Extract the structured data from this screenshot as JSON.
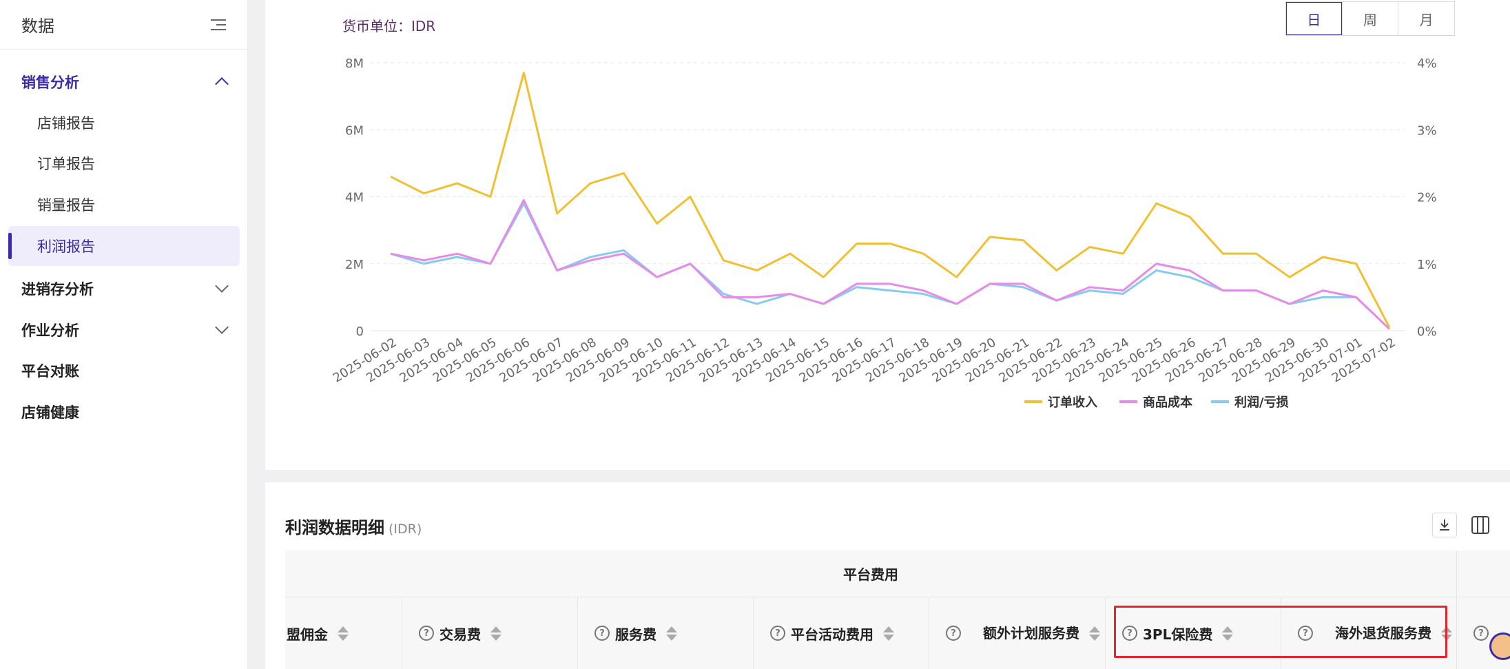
{
  "sidebar": {
    "title": "数据",
    "groups": [
      {
        "label": "销售分析",
        "expanded": true
      },
      {
        "label": "进销存分析"
      },
      {
        "label": "作业分析"
      },
      {
        "label": "平台对账"
      },
      {
        "label": "店铺健康"
      }
    ],
    "sub_items": [
      "店铺报告",
      "订单报告",
      "销量报告",
      "利润报告"
    ],
    "selected_sub": "利润报告"
  },
  "chart_header": {
    "currency_label": "货币单位：IDR",
    "period_tabs": [
      "日",
      "周",
      "月"
    ],
    "active_period": "日"
  },
  "chart_data": {
    "type": "line",
    "x": [
      "2025-06-02",
      "2025-06-03",
      "2025-06-04",
      "2025-06-05",
      "2025-06-06",
      "2025-06-07",
      "2025-06-08",
      "2025-06-09",
      "2025-06-10",
      "2025-06-11",
      "2025-06-12",
      "2025-06-13",
      "2025-06-14",
      "2025-06-15",
      "2025-06-16",
      "2025-06-17",
      "2025-06-18",
      "2025-06-19",
      "2025-06-20",
      "2025-06-21",
      "2025-06-22",
      "2025-06-23",
      "2025-06-24",
      "2025-06-25",
      "2025-06-26",
      "2025-06-27",
      "2025-06-28",
      "2025-06-29",
      "2025-06-30",
      "2025-07-01",
      "2025-07-02"
    ],
    "series": [
      {
        "name": "订单收入",
        "color": "#f0c030",
        "values": [
          4.6,
          4.1,
          4.4,
          4.0,
          7.7,
          3.5,
          4.4,
          4.7,
          3.2,
          4.0,
          2.1,
          1.8,
          2.3,
          1.6,
          2.6,
          2.6,
          2.3,
          1.6,
          2.8,
          2.7,
          1.8,
          2.5,
          2.3,
          3.8,
          3.4,
          2.3,
          2.3,
          1.6,
          2.2,
          2.0,
          0.1
        ]
      },
      {
        "name": "商品成本",
        "color": "#e88ae8",
        "values": [
          2.3,
          2.1,
          2.3,
          2.0,
          3.9,
          1.8,
          2.1,
          2.3,
          1.6,
          2.0,
          1.0,
          1.0,
          1.1,
          0.8,
          1.4,
          1.4,
          1.2,
          0.8,
          1.4,
          1.4,
          0.9,
          1.3,
          1.2,
          2.0,
          1.8,
          1.2,
          1.2,
          0.8,
          1.2,
          1.0,
          0.05
        ]
      },
      {
        "name": "利润/亏损",
        "color": "#86cbef",
        "values": [
          2.3,
          2.0,
          2.2,
          2.0,
          3.8,
          1.8,
          2.2,
          2.4,
          1.6,
          2.0,
          1.1,
          0.8,
          1.1,
          0.8,
          1.3,
          1.2,
          1.1,
          0.8,
          1.4,
          1.3,
          0.9,
          1.2,
          1.1,
          1.8,
          1.6,
          1.2,
          1.2,
          0.8,
          1.0,
          1.0,
          0.05
        ]
      }
    ],
    "y_left_ticks": [
      "0",
      "2M",
      "4M",
      "6M",
      "8M"
    ],
    "y_right_ticks": [
      "0%",
      "1%",
      "2%",
      "3%",
      "4%"
    ],
    "ylim": [
      0,
      8
    ],
    "legend": "bottom-center",
    "grid": true
  },
  "detail": {
    "title": "利润数据明细",
    "unit": "(IDR)",
    "group_header": "平台费用",
    "columns": [
      {
        "label": "盟佣金",
        "help": false
      },
      {
        "label": "交易费",
        "help": true
      },
      {
        "label": "服务费",
        "help": true
      },
      {
        "label": "平台活动费用",
        "help": true
      },
      {
        "label": "额外计划服务费",
        "help": true
      },
      {
        "label": "3PL保险费",
        "help": true
      },
      {
        "label": "海外退货服务费",
        "help": true
      }
    ]
  }
}
